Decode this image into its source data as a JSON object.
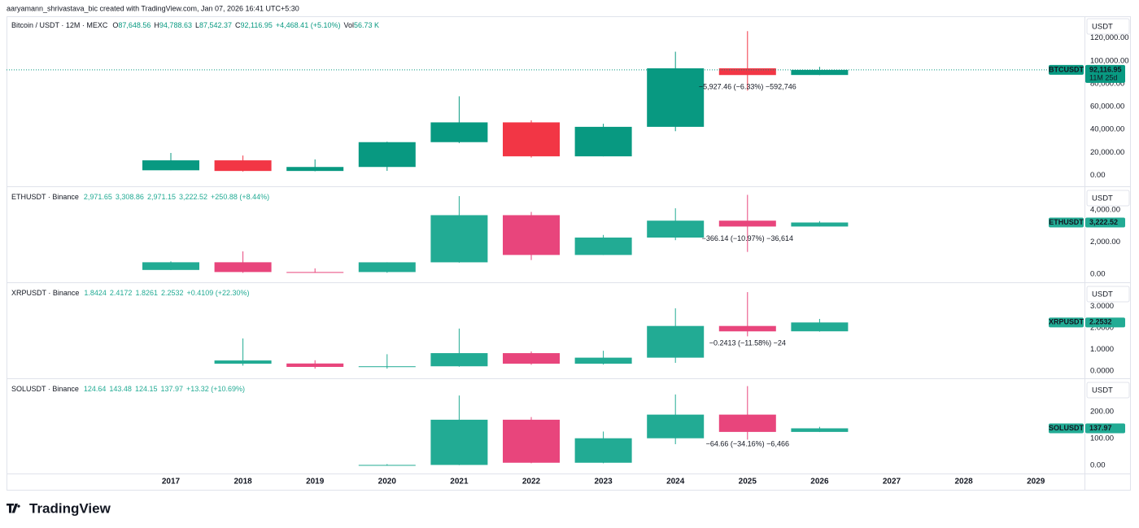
{
  "header": {
    "attribution": "aaryamann_shrivastava_bic created with TradingView.com, Jan 07, 2026 16:41 UTC+5:30"
  },
  "chart_data": [
    {
      "type": "candlestick",
      "title": "Bitcoin / USDT · 12M · MEXC",
      "stats": [
        {
          "label": "O",
          "value": "87,648.56"
        },
        {
          "label": "H",
          "value": "94,788.63"
        },
        {
          "label": "L",
          "value": "87,542.37"
        },
        {
          "label": "C",
          "value": "92,116.95"
        },
        "+4,468.41 (+5.10%)",
        {
          "label": "Vol",
          "value": "56.73 K"
        }
      ],
      "currency": "USDT",
      "symbol": "BTCUSDT",
      "last_price": "92,116.95",
      "countdown": "11M 25d",
      "annotation": "−5,927.46 (−6.33%) −592,746",
      "price_line": true,
      "up_color": "#089981",
      "down_color": "#f23645",
      "open": [
        4300,
        13000,
        3700,
        7200,
        28900,
        46200,
        16500,
        42300,
        93500,
        87648.56,
        null,
        null,
        null
      ],
      "high": [
        19500,
        17200,
        13800,
        29300,
        69000,
        48000,
        45000,
        108000,
        126000,
        94788.63,
        null,
        null,
        null
      ],
      "low": [
        4300,
        3200,
        3400,
        3800,
        28100,
        15500,
        16500,
        38500,
        74000,
        87542.37,
        null,
        null,
        null
      ],
      "close": [
        13000,
        3700,
        7200,
        28900,
        46200,
        16500,
        42300,
        93500,
        87600,
        92116.95,
        null,
        null,
        null
      ],
      "ylim": [
        -9000,
        139000
      ],
      "yticks": [
        {
          "value": 0,
          "label": "0.00"
        },
        {
          "value": 20000,
          "label": "20,000.00"
        },
        {
          "value": 40000,
          "label": "40,000.00"
        },
        {
          "value": 60000,
          "label": "60,000.00"
        },
        {
          "value": 80000,
          "label": "80,000.00"
        },
        {
          "value": 100000,
          "label": "100,000.00"
        },
        {
          "value": 120000,
          "label": "120,000.00"
        }
      ]
    },
    {
      "type": "candlestick",
      "title": "ETHUSDT · Binance",
      "stats": [
        "2,971.65",
        "3,308.86",
        "2,971.15",
        "3,222.52",
        "+250.88 (+8.44%)"
      ],
      "currency": "USDT",
      "symbol": "ETHUSDT",
      "last_price": "3,222.52",
      "annotation": "−366.14 (−10.97%) −36,614",
      "up_color": "#22ab94",
      "down_color": "#e8457c",
      "open": [
        260,
        740,
        130,
        129,
        737,
        3680,
        1196,
        2282,
        3337,
        2971.65,
        null,
        null,
        null
      ],
      "high": [
        800,
        1420,
        360,
        740,
        4870,
        3880,
        2445,
        4110,
        4950,
        3308.86,
        null,
        null,
        null
      ],
      "low": [
        250,
        80,
        90,
        86,
        715,
        880,
        1190,
        2120,
        1385,
        2971.15,
        null,
        null,
        null
      ],
      "close": [
        740,
        130,
        129,
        737,
        3680,
        1196,
        2282,
        3337,
        2971,
        3222.52,
        null,
        null,
        null
      ],
      "ylim": [
        -460,
        5380
      ],
      "yticks": [
        {
          "value": 0,
          "label": "0.00"
        },
        {
          "value": 2000,
          "label": "2,000.00"
        },
        {
          "value": 4000,
          "label": "4,000.00"
        }
      ]
    },
    {
      "type": "candlestick",
      "title": "XRPUSDT · Binance",
      "stats": [
        "1.8424",
        "2.4172",
        "1.8261",
        "2.2532",
        "+0.4109 (+22.30%)"
      ],
      "currency": "USDT",
      "symbol": "XRPUSDT",
      "last_price": "2.2532",
      "annotation": "−0.2413 (−11.58%) −24",
      "up_color": "#22ab94",
      "down_color": "#e8457c",
      "open": [
        null,
        0.34,
        0.35,
        0.19,
        0.22,
        0.83,
        0.34,
        0.62,
        2.09,
        1.8424,
        null,
        null,
        null
      ],
      "high": [
        null,
        1.51,
        0.5,
        0.78,
        1.97,
        0.91,
        0.94,
        2.91,
        3.66,
        2.4172,
        null,
        null,
        null
      ],
      "low": [
        null,
        0.25,
        0.11,
        0.11,
        0.2,
        0.29,
        0.3,
        0.38,
        1.61,
        1.8261,
        null,
        null,
        null
      ],
      "close": [
        null,
        0.49,
        0.19,
        0.22,
        0.83,
        0.34,
        0.62,
        2.09,
        1.84,
        2.2532,
        null,
        null,
        null
      ],
      "ylim": [
        -0.3,
        4.04
      ],
      "yticks": [
        {
          "value": 0,
          "label": "0.0000"
        },
        {
          "value": 1,
          "label": "1.0000"
        },
        {
          "value": 2,
          "label": "2.0000"
        },
        {
          "value": 3,
          "label": "3.0000"
        }
      ]
    },
    {
      "type": "candlestick",
      "title": "SOLUSDT · Binance",
      "stats": [
        "124.64",
        "143.48",
        "124.15",
        "137.97",
        "+13.32 (+10.69%)"
      ],
      "currency": "USDT",
      "symbol": "SOLUSDT",
      "last_price": "137.97",
      "annotation": "−64.66 (−34.16%) −6,466",
      "up_color": "#22ab94",
      "down_color": "#e8457c",
      "categories": [
        "2017",
        "2018",
        "2019",
        "2020",
        "2021",
        "2022",
        "2023",
        "2024",
        "2025",
        "2026",
        "2027",
        "2028",
        "2029"
      ],
      "open": [
        null,
        null,
        null,
        0.95,
        1.8,
        170,
        10,
        101,
        189,
        124.64,
        null,
        null,
        null
      ],
      "high": [
        null,
        null,
        null,
        4.9,
        260,
        180,
        126,
        264,
        295,
        143.48,
        null,
        null,
        null
      ],
      "low": [
        null,
        null,
        null,
        0.5,
        1.0,
        8,
        8,
        79,
        96,
        124.15,
        null,
        null,
        null
      ],
      "close": [
        null,
        null,
        null,
        1.8,
        170,
        10,
        101,
        189,
        124.64,
        137.97,
        null,
        null,
        null
      ],
      "ylim": [
        -27,
        318
      ],
      "yticks": [
        {
          "value": 0,
          "label": "0.00"
        },
        {
          "value": 100,
          "label": "100.00"
        },
        {
          "value": 200,
          "label": "200.00"
        }
      ]
    }
  ],
  "footer": {
    "brand": "TradingView"
  }
}
